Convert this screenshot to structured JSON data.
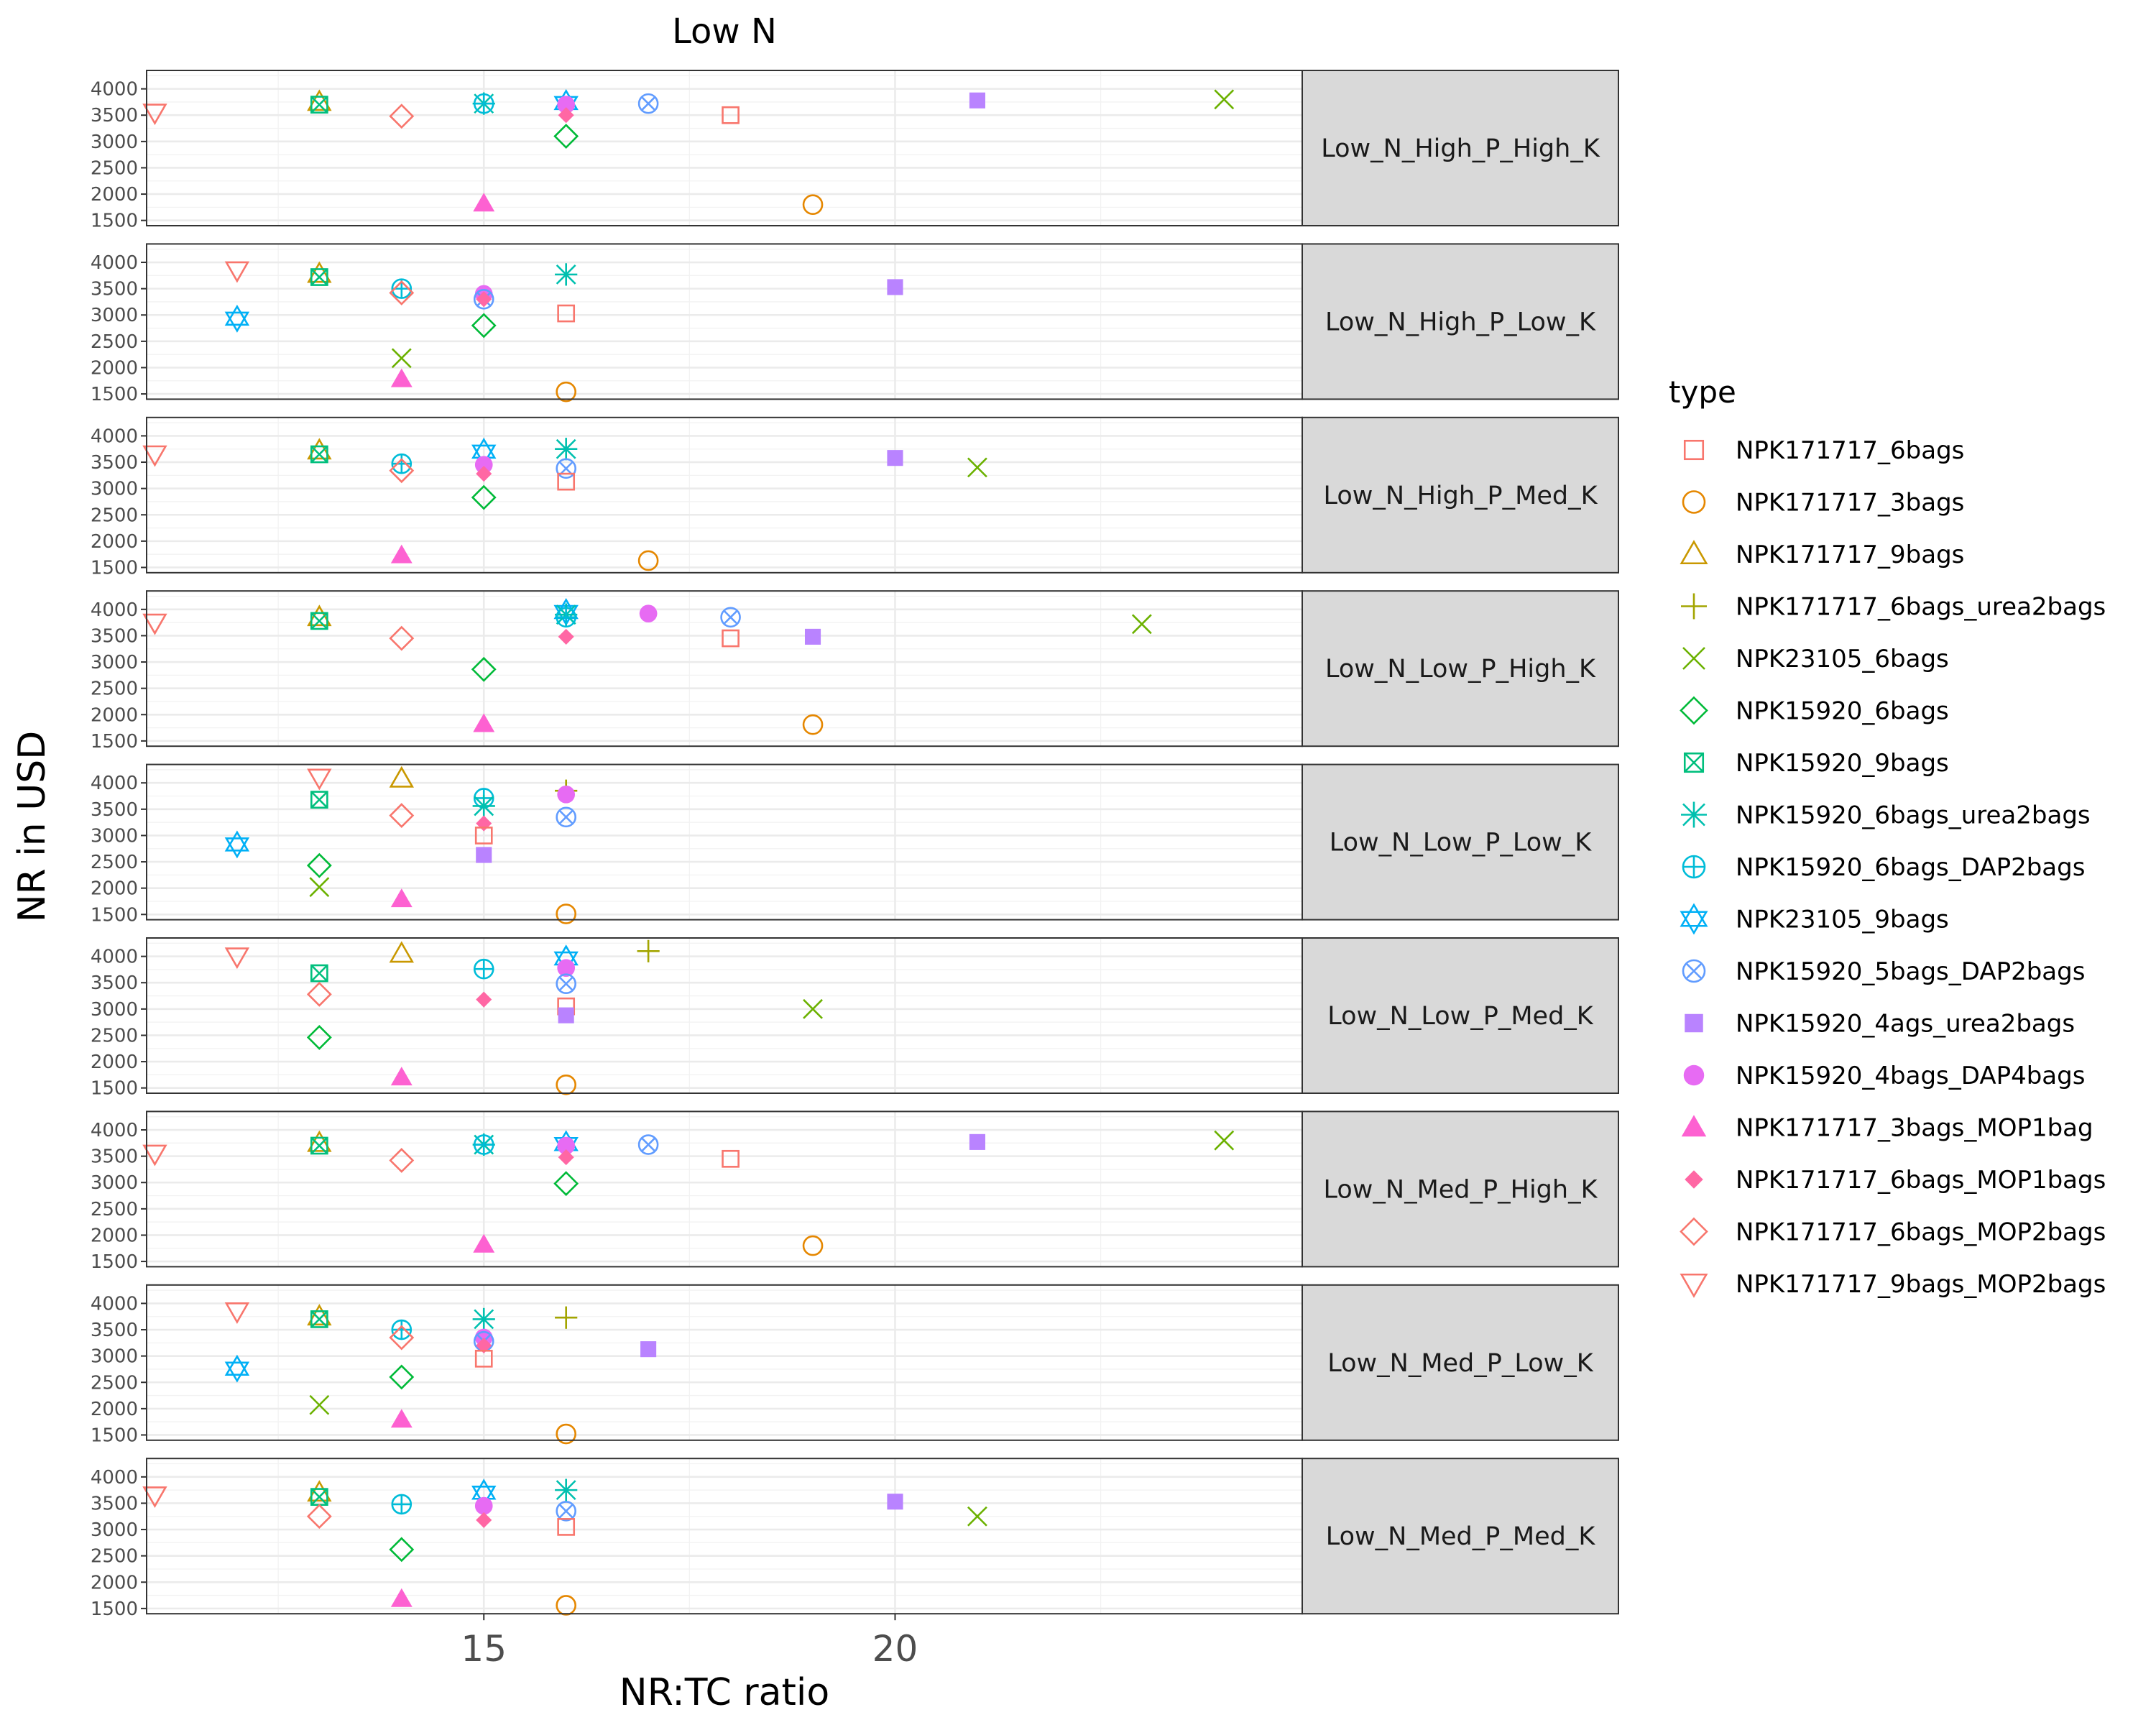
{
  "chart_data": {
    "type": "scatter",
    "title": "Low N",
    "xlabel": "NR:TC ratio",
    "ylabel": "NR in USD",
    "xlim": [
      10.9,
      24.95
    ],
    "ylim": [
      1400,
      4350
    ],
    "x_ticks": [
      15,
      20
    ],
    "x_tick_labels": [
      "15",
      "20"
    ],
    "y_ticks": [
      1500,
      2000,
      2500,
      3000,
      3500,
      4000
    ],
    "y_tick_labels": [
      "1500",
      "2000",
      "2500",
      "3000",
      "3500",
      "4000"
    ],
    "grid": true,
    "legend": {
      "title": "type",
      "position": "right",
      "entries": [
        {
          "label": "NPK171717_6bags",
          "color": "#F8766D",
          "shape": "square-open"
        },
        {
          "label": "NPK171717_3bags",
          "color": "#E58700",
          "shape": "circle-open"
        },
        {
          "label": "NPK171717_9bags",
          "color": "#C99800",
          "shape": "triangle-open"
        },
        {
          "label": "NPK171717_6bags_urea2bags",
          "color": "#A3A500",
          "shape": "plus"
        },
        {
          "label": "NPK23105_6bags",
          "color": "#6BB100",
          "shape": "cross"
        },
        {
          "label": "NPK15920_6bags",
          "color": "#00BA38",
          "shape": "diamond-open"
        },
        {
          "label": "NPK15920_9bags",
          "color": "#00BF7D",
          "shape": "square-cross"
        },
        {
          "label": "NPK15920_6bags_urea2bags",
          "color": "#00C0AF",
          "shape": "asterisk"
        },
        {
          "label": "NPK15920_6bags_DAP2bags",
          "color": "#00BCD8",
          "shape": "circle-plus"
        },
        {
          "label": "NPK23105_9bags",
          "color": "#00B0F6",
          "shape": "star-of-david"
        },
        {
          "label": "NPK15920_5bags_DAP2bags",
          "color": "#619CFF",
          "shape": "circle-cross"
        },
        {
          "label": "NPK15920_4ags_urea2bags",
          "color": "#B983FF",
          "shape": "square-filled"
        },
        {
          "label": "NPK15920_4bags_DAP4bags",
          "color": "#E76BF3",
          "shape": "circle-filled"
        },
        {
          "label": "NPK171717_3bags_MOP1bag",
          "color": "#FD61D1",
          "shape": "triangle-filled"
        },
        {
          "label": "NPK171717_6bags_MOP1bags",
          "color": "#FF67A4",
          "shape": "diamond-filled"
        },
        {
          "label": "NPK171717_6bags_MOP2bags",
          "color": "#F8766D",
          "shape": "diamond-open"
        },
        {
          "label": "NPK171717_9bags_MOP2bags",
          "color": "#F8766D",
          "shape": "triangle-down-open"
        }
      ]
    },
    "panels": [
      {
        "label": "Low_N_High_P_High_K",
        "points": [
          {
            "type": 16,
            "x": 11,
            "y": 3550
          },
          {
            "type": 2,
            "x": 13,
            "y": 3750
          },
          {
            "type": 6,
            "x": 13,
            "y": 3700
          },
          {
            "type": 15,
            "x": 14,
            "y": 3480
          },
          {
            "type": 7,
            "x": 15,
            "y": 3720
          },
          {
            "type": 8,
            "x": 15,
            "y": 3720
          },
          {
            "type": 13,
            "x": 15,
            "y": 1820
          },
          {
            "type": 9,
            "x": 16,
            "y": 3730
          },
          {
            "type": 12,
            "x": 16,
            "y": 3700
          },
          {
            "type": 14,
            "x": 16,
            "y": 3500
          },
          {
            "type": 5,
            "x": 16,
            "y": 3100
          },
          {
            "type": 10,
            "x": 17,
            "y": 3720
          },
          {
            "type": 0,
            "x": 18,
            "y": 3500
          },
          {
            "type": 1,
            "x": 19,
            "y": 1800
          },
          {
            "type": 11,
            "x": 21,
            "y": 3780
          },
          {
            "type": 4,
            "x": 24,
            "y": 3800
          }
        ]
      },
      {
        "label": "Low_N_High_P_Low_K",
        "points": [
          {
            "type": 9,
            "x": 12,
            "y": 2930
          },
          {
            "type": 16,
            "x": 12,
            "y": 3850
          },
          {
            "type": 2,
            "x": 13,
            "y": 3780
          },
          {
            "type": 6,
            "x": 13,
            "y": 3720
          },
          {
            "type": 8,
            "x": 14,
            "y": 3500
          },
          {
            "type": 15,
            "x": 14,
            "y": 3420
          },
          {
            "type": 4,
            "x": 14,
            "y": 2180
          },
          {
            "type": 13,
            "x": 14,
            "y": 1780
          },
          {
            "type": 12,
            "x": 15,
            "y": 3400
          },
          {
            "type": 10,
            "x": 15,
            "y": 3300
          },
          {
            "type": 14,
            "x": 15,
            "y": 3300
          },
          {
            "type": 5,
            "x": 15,
            "y": 2800
          },
          {
            "type": 7,
            "x": 16,
            "y": 3770
          },
          {
            "type": 0,
            "x": 16,
            "y": 3030
          },
          {
            "type": 1,
            "x": 16,
            "y": 1540
          },
          {
            "type": 11,
            "x": 20,
            "y": 3530
          }
        ]
      },
      {
        "label": "Low_N_High_P_Med_K",
        "points": [
          {
            "type": 16,
            "x": 11,
            "y": 3650
          },
          {
            "type": 2,
            "x": 13,
            "y": 3720
          },
          {
            "type": 6,
            "x": 13,
            "y": 3650
          },
          {
            "type": 8,
            "x": 14,
            "y": 3470
          },
          {
            "type": 15,
            "x": 14,
            "y": 3340
          },
          {
            "type": 13,
            "x": 14,
            "y": 1730
          },
          {
            "type": 9,
            "x": 15,
            "y": 3700
          },
          {
            "type": 12,
            "x": 15,
            "y": 3450
          },
          {
            "type": 14,
            "x": 15,
            "y": 3280
          },
          {
            "type": 5,
            "x": 15,
            "y": 2830
          },
          {
            "type": 7,
            "x": 16,
            "y": 3750
          },
          {
            "type": 10,
            "x": 16,
            "y": 3380
          },
          {
            "type": 0,
            "x": 16,
            "y": 3130
          },
          {
            "type": 1,
            "x": 17,
            "y": 1630
          },
          {
            "type": 11,
            "x": 20,
            "y": 3580
          },
          {
            "type": 4,
            "x": 21,
            "y": 3400
          }
        ]
      },
      {
        "label": "Low_N_Low_P_High_K",
        "points": [
          {
            "type": 16,
            "x": 11,
            "y": 3750
          },
          {
            "type": 2,
            "x": 13,
            "y": 3850
          },
          {
            "type": 6,
            "x": 13,
            "y": 3780
          },
          {
            "type": 15,
            "x": 14,
            "y": 3450
          },
          {
            "type": 5,
            "x": 15,
            "y": 2860
          },
          {
            "type": 13,
            "x": 15,
            "y": 1820
          },
          {
            "type": 9,
            "x": 16,
            "y": 3950
          },
          {
            "type": 7,
            "x": 16,
            "y": 3900
          },
          {
            "type": 8,
            "x": 16,
            "y": 3850
          },
          {
            "type": 14,
            "x": 16,
            "y": 3480
          },
          {
            "type": 12,
            "x": 17,
            "y": 3920
          },
          {
            "type": 10,
            "x": 18,
            "y": 3850
          },
          {
            "type": 0,
            "x": 18,
            "y": 3450
          },
          {
            "type": 11,
            "x": 19,
            "y": 3480
          },
          {
            "type": 1,
            "x": 19,
            "y": 1810
          },
          {
            "type": 4,
            "x": 23,
            "y": 3720
          }
        ]
      },
      {
        "label": "Low_N_Low_P_Low_K",
        "points": [
          {
            "type": 9,
            "x": 12,
            "y": 2830
          },
          {
            "type": 16,
            "x": 13,
            "y": 4100
          },
          {
            "type": 6,
            "x": 13,
            "y": 3680
          },
          {
            "type": 5,
            "x": 13,
            "y": 2430
          },
          {
            "type": 4,
            "x": 13,
            "y": 2020
          },
          {
            "type": 2,
            "x": 14,
            "y": 4080
          },
          {
            "type": 15,
            "x": 14,
            "y": 3380
          },
          {
            "type": 13,
            "x": 14,
            "y": 1790
          },
          {
            "type": 8,
            "x": 15,
            "y": 3710
          },
          {
            "type": 7,
            "x": 15,
            "y": 3560
          },
          {
            "type": 14,
            "x": 15,
            "y": 3230
          },
          {
            "type": 0,
            "x": 15,
            "y": 3000
          },
          {
            "type": 11,
            "x": 15,
            "y": 2630
          },
          {
            "type": 3,
            "x": 16,
            "y": 3850
          },
          {
            "type": 12,
            "x": 16,
            "y": 3780
          },
          {
            "type": 10,
            "x": 16,
            "y": 3350
          },
          {
            "type": 1,
            "x": 16,
            "y": 1510
          }
        ]
      },
      {
        "label": "Low_N_Low_P_Med_K",
        "points": [
          {
            "type": 16,
            "x": 12,
            "y": 4000
          },
          {
            "type": 6,
            "x": 13,
            "y": 3680
          },
          {
            "type": 15,
            "x": 13,
            "y": 3280
          },
          {
            "type": 5,
            "x": 13,
            "y": 2460
          },
          {
            "type": 2,
            "x": 14,
            "y": 4050
          },
          {
            "type": 13,
            "x": 14,
            "y": 1700
          },
          {
            "type": 8,
            "x": 15,
            "y": 3760
          },
          {
            "type": 14,
            "x": 15,
            "y": 3180
          },
          {
            "type": 9,
            "x": 16,
            "y": 3960
          },
          {
            "type": 12,
            "x": 16,
            "y": 3780
          },
          {
            "type": 10,
            "x": 16,
            "y": 3480
          },
          {
            "type": 0,
            "x": 16,
            "y": 3050
          },
          {
            "type": 11,
            "x": 16,
            "y": 2880
          },
          {
            "type": 1,
            "x": 16,
            "y": 1560
          },
          {
            "type": 3,
            "x": 17,
            "y": 4100
          },
          {
            "type": 4,
            "x": 19,
            "y": 3000
          }
        ]
      },
      {
        "label": "Low_N_Med_P_High_K",
        "points": [
          {
            "type": 16,
            "x": 11,
            "y": 3550
          },
          {
            "type": 2,
            "x": 13,
            "y": 3750
          },
          {
            "type": 6,
            "x": 13,
            "y": 3700
          },
          {
            "type": 15,
            "x": 14,
            "y": 3420
          },
          {
            "type": 7,
            "x": 15,
            "y": 3720
          },
          {
            "type": 8,
            "x": 15,
            "y": 3720
          },
          {
            "type": 13,
            "x": 15,
            "y": 1820
          },
          {
            "type": 9,
            "x": 16,
            "y": 3730
          },
          {
            "type": 12,
            "x": 16,
            "y": 3700
          },
          {
            "type": 14,
            "x": 16,
            "y": 3480
          },
          {
            "type": 5,
            "x": 16,
            "y": 2980
          },
          {
            "type": 10,
            "x": 17,
            "y": 3720
          },
          {
            "type": 0,
            "x": 18,
            "y": 3450
          },
          {
            "type": 1,
            "x": 19,
            "y": 1800
          },
          {
            "type": 11,
            "x": 21,
            "y": 3770
          },
          {
            "type": 4,
            "x": 24,
            "y": 3800
          }
        ]
      },
      {
        "label": "Low_N_Med_P_Low_K",
        "points": [
          {
            "type": 9,
            "x": 12,
            "y": 2760
          },
          {
            "type": 16,
            "x": 12,
            "y": 3850
          },
          {
            "type": 2,
            "x": 13,
            "y": 3750
          },
          {
            "type": 6,
            "x": 13,
            "y": 3700
          },
          {
            "type": 4,
            "x": 13,
            "y": 2070
          },
          {
            "type": 8,
            "x": 14,
            "y": 3500
          },
          {
            "type": 15,
            "x": 14,
            "y": 3350
          },
          {
            "type": 5,
            "x": 14,
            "y": 2600
          },
          {
            "type": 13,
            "x": 14,
            "y": 1790
          },
          {
            "type": 7,
            "x": 15,
            "y": 3700
          },
          {
            "type": 12,
            "x": 15,
            "y": 3350
          },
          {
            "type": 10,
            "x": 15,
            "y": 3280
          },
          {
            "type": 14,
            "x": 15,
            "y": 3200
          },
          {
            "type": 0,
            "x": 15,
            "y": 2950
          },
          {
            "type": 3,
            "x": 16,
            "y": 3730
          },
          {
            "type": 1,
            "x": 16,
            "y": 1520
          },
          {
            "type": 11,
            "x": 17,
            "y": 3130
          }
        ]
      },
      {
        "label": "Low_N_Med_P_Med_K",
        "points": [
          {
            "type": 16,
            "x": 11,
            "y": 3650
          },
          {
            "type": 2,
            "x": 13,
            "y": 3700
          },
          {
            "type": 6,
            "x": 13,
            "y": 3620
          },
          {
            "type": 15,
            "x": 13,
            "y": 3250
          },
          {
            "type": 8,
            "x": 14,
            "y": 3480
          },
          {
            "type": 5,
            "x": 14,
            "y": 2620
          },
          {
            "type": 13,
            "x": 14,
            "y": 1680
          },
          {
            "type": 9,
            "x": 15,
            "y": 3700
          },
          {
            "type": 12,
            "x": 15,
            "y": 3450
          },
          {
            "type": 14,
            "x": 15,
            "y": 3180
          },
          {
            "type": 7,
            "x": 16,
            "y": 3750
          },
          {
            "type": 10,
            "x": 16,
            "y": 3350
          },
          {
            "type": 0,
            "x": 16,
            "y": 3050
          },
          {
            "type": 1,
            "x": 16,
            "y": 1560
          },
          {
            "type": 11,
            "x": 20,
            "y": 3530
          },
          {
            "type": 4,
            "x": 21,
            "y": 3250
          }
        ]
      }
    ]
  }
}
